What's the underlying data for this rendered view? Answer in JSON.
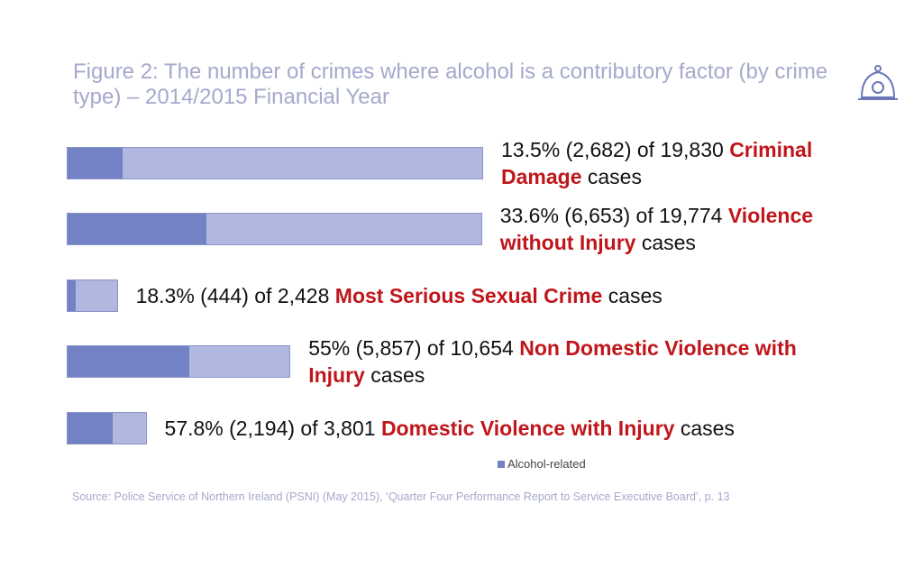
{
  "chart_data": {
    "type": "bar",
    "title": "Figure 2: The number of crimes where alcohol is a contributory factor (by crime type) – 2014/2015 Financial Year",
    "categories": [
      "Criminal Damage",
      "Violence without Injury",
      "Most Serious Sexual Crime",
      "Non Domestic Violence with Injury",
      "Domestic Violence with Injury"
    ],
    "series": [
      {
        "name": "Alcohol-related",
        "color": "#7282c4",
        "values": [
          2682,
          6653,
          444,
          5857,
          2194
        ]
      },
      {
        "color": "#b1b8e0",
        "values": [
          19830,
          19774,
          2428,
          10654,
          3801
        ]
      }
    ],
    "annotations": [
      {
        "text": "13.5% (2,682) of 19,830",
        "suffix": "cases"
      },
      {
        "text": "33.6% (6,653) of 19,774",
        "suffix": "cases"
      },
      {
        "text": "18.3% (444) of 2,428",
        "suffix": "cases"
      },
      {
        "text": "55% (5,857) of 10,654",
        "suffix": "cases"
      },
      {
        "text": "57.8% (2,194) of 3,801",
        "suffix": "cases"
      }
    ],
    "source": "Source: Police Service of Northern Ireland (PSNI) (May 2015), ‘Quarter Four Performance Report to Service Executive Board’, p. 13"
  }
}
